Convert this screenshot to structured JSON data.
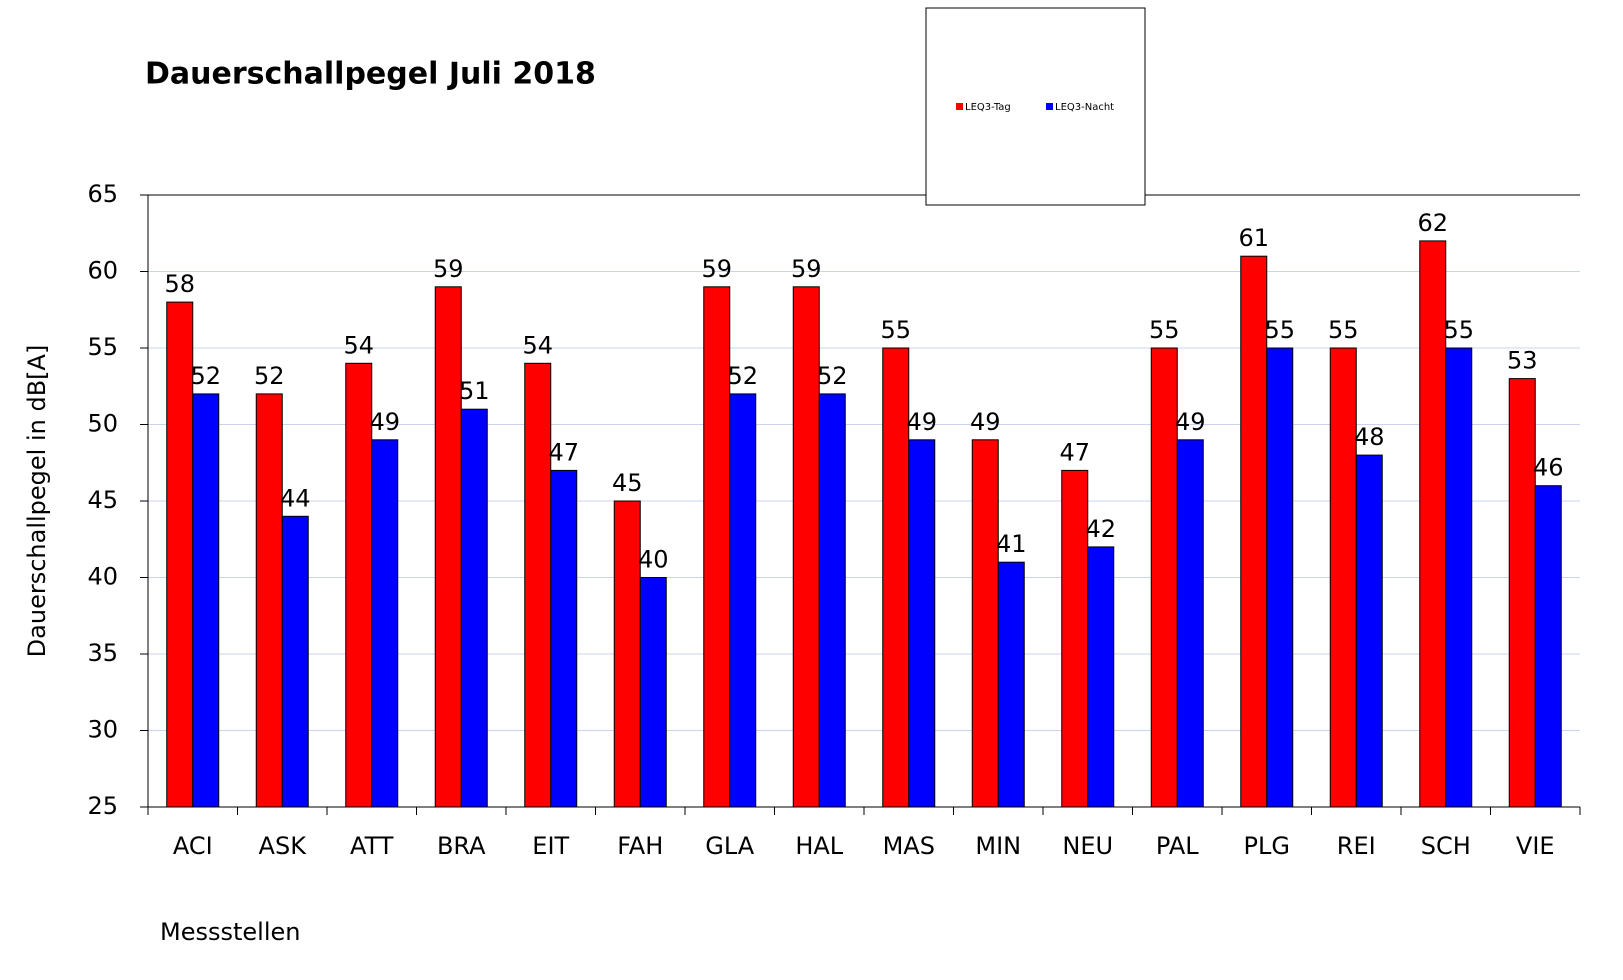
{
  "chart_data": {
    "type": "bar",
    "title": "Dauerschallpegel Juli 2018",
    "x_label": "Messstellen",
    "y_label": "Dauerschallpegel in dB[A]",
    "categories": [
      "ACI",
      "ASK",
      "ATT",
      "BRA",
      "EIT",
      "FAH",
      "GLA",
      "HAL",
      "MAS",
      "MIN",
      "NEU",
      "PAL",
      "PLG",
      "REI",
      "SCH",
      "VIE"
    ],
    "series": [
      {
        "name": "LEQ3-Tag",
        "color": "#ff0000",
        "values": [
          58,
          52,
          54,
          59,
          54,
          45,
          59,
          59,
          55,
          49,
          47,
          55,
          61,
          55,
          62,
          53
        ]
      },
      {
        "name": "LEQ3-Nacht",
        "color": "#0000ff",
        "values": [
          52,
          44,
          49,
          51,
          47,
          40,
          52,
          52,
          49,
          41,
          42,
          49,
          55,
          48,
          55,
          46
        ]
      }
    ],
    "ylim": [
      25,
      65
    ],
    "yticks": [
      25,
      30,
      35,
      40,
      45,
      50,
      55,
      60,
      65
    ],
    "grid": true,
    "legend": "top"
  }
}
